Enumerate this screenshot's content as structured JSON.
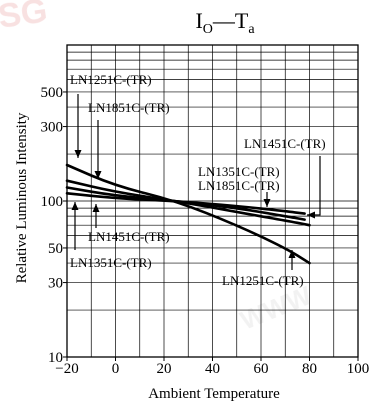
{
  "chart_data": {
    "type": "line",
    "title": "IO—Ta",
    "title_parts": {
      "main": "I",
      "sub_main": "O",
      "dash": "—",
      "second": "T",
      "sub_second": "a"
    },
    "xlabel": "Ambient Temperature",
    "ylabel": "Relative Luminous Intensity",
    "xlim": [
      -20,
      100
    ],
    "ylim": [
      10,
      1000
    ],
    "y_scale": "log",
    "grid": true,
    "x_ticks": [
      -20,
      0,
      20,
      40,
      60,
      80,
      100
    ],
    "x_tick_labels": [
      "−20",
      "0",
      "20",
      "40",
      "60",
      "80",
      "100"
    ],
    "y_ticks": [
      10,
      30,
      50,
      100,
      300,
      500
    ],
    "y_tick_labels": [
      "10",
      "30",
      "50",
      "100",
      "300",
      "500"
    ],
    "series": [
      {
        "name": "LN1251C-(TR)",
        "x": [
          -20,
          0,
          25,
          50,
          70,
          80
        ],
        "y": [
          170,
          125,
          100,
          70,
          50,
          40
        ]
      },
      {
        "name": "LN1851C-(TR)",
        "x": [
          -20,
          0,
          25,
          50,
          70,
          80
        ],
        "y": [
          135,
          114,
          100,
          85,
          75,
          70
        ]
      },
      {
        "name": "LN1351C-(TR)",
        "x": [
          -20,
          0,
          25,
          50,
          70,
          78
        ],
        "y": [
          122,
          108,
          100,
          90,
          80,
          76
        ]
      },
      {
        "name": "LN1451C-(TR)",
        "x": [
          -20,
          0,
          25,
          50,
          70,
          78
        ],
        "y": [
          112,
          104,
          100,
          93,
          86,
          83
        ]
      }
    ],
    "annotations": [
      {
        "text": "LN1251C-(TR)"
      },
      {
        "text": "LN1851C-(TR)"
      },
      {
        "text": "LN1451C-(TR)"
      },
      {
        "text": "LN1351C-(TR)"
      },
      {
        "text": "LN1851C-(TR)"
      },
      {
        "text": "LN1451C-(TR)"
      },
      {
        "text": "LN1351C-(TR)"
      },
      {
        "text": "LN1251C-(TR)"
      }
    ],
    "colors": {
      "line": "#000000",
      "grid": "#000000",
      "watermark": "#f3c9c9"
    }
  }
}
